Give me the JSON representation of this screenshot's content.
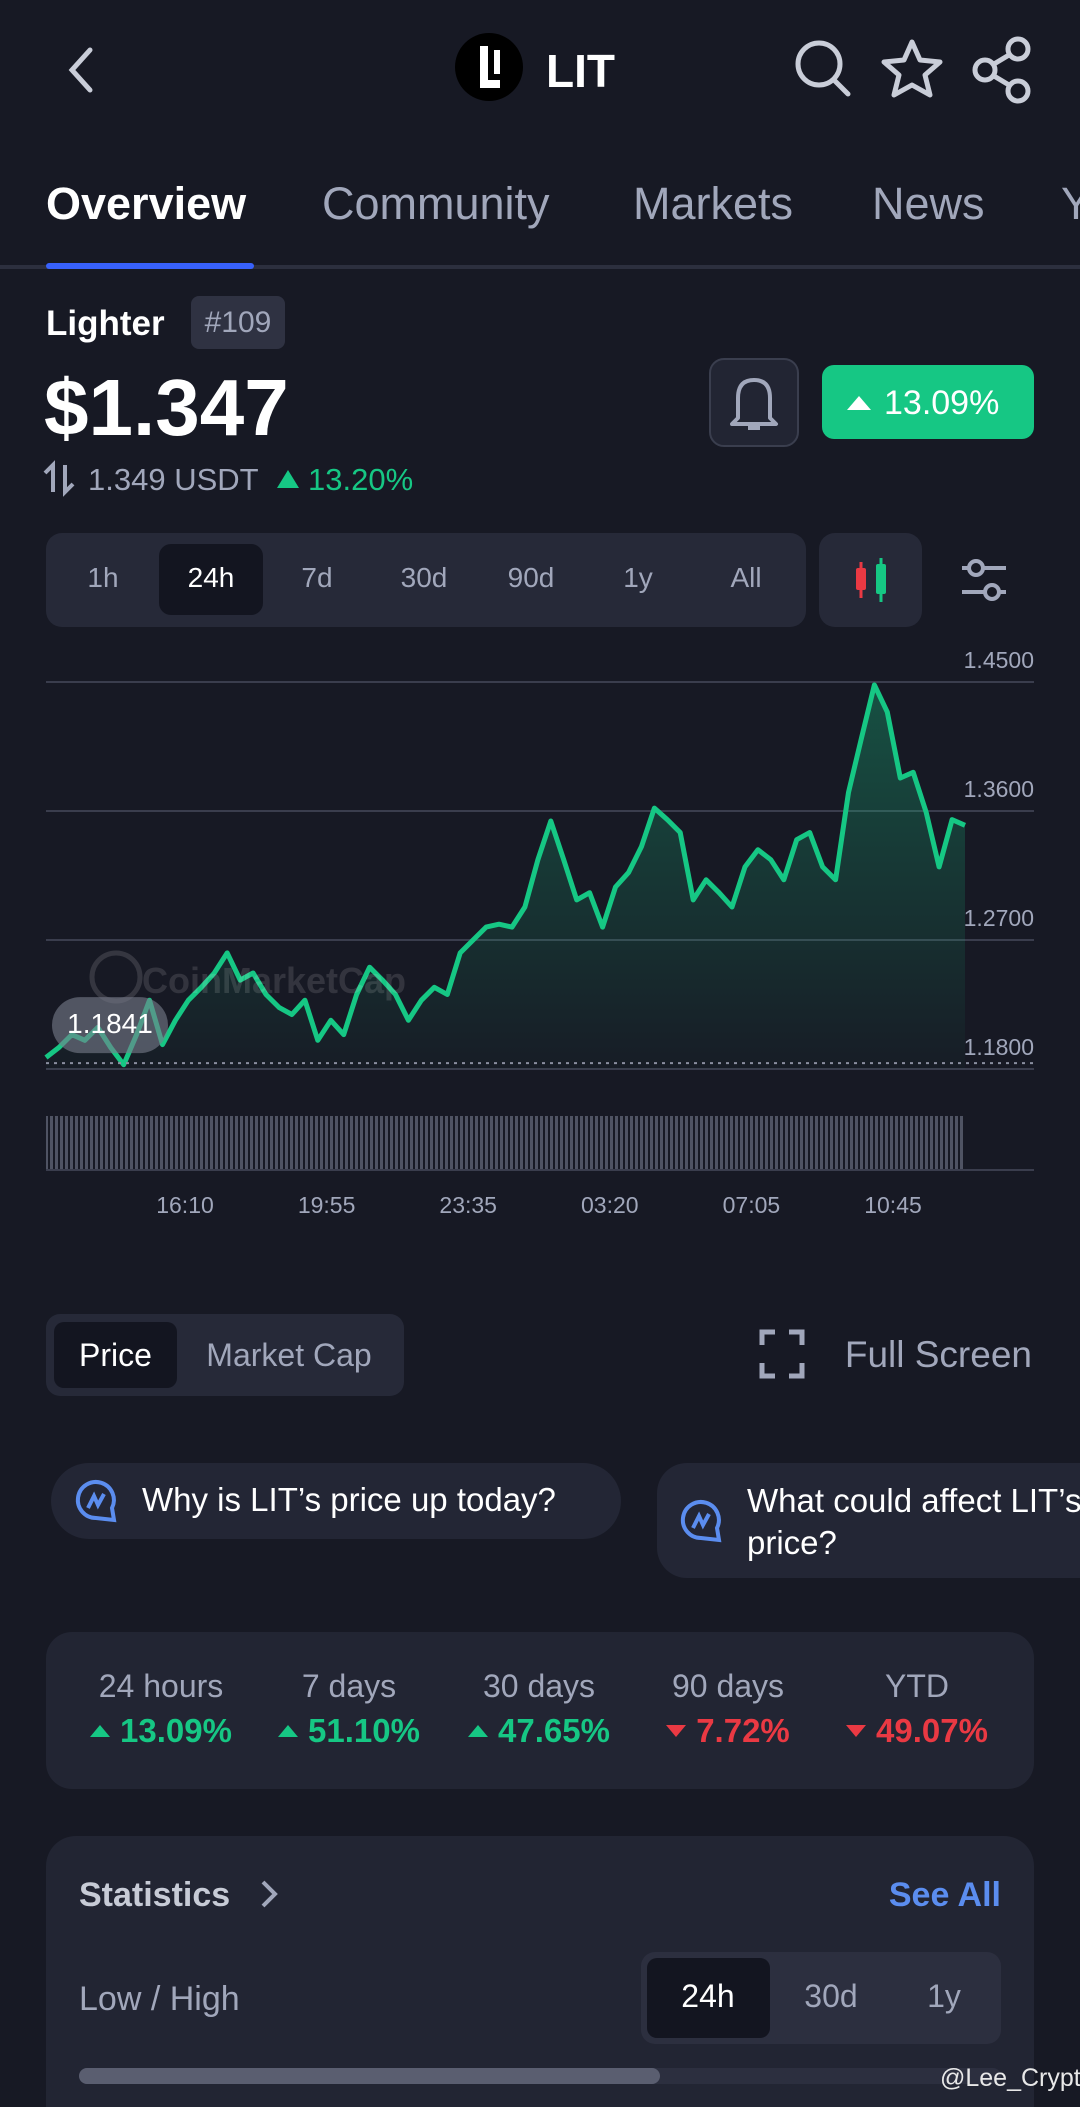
{
  "header": {
    "title": "LIT"
  },
  "tabs": [
    "Overview",
    "Community",
    "Markets",
    "News",
    "Y"
  ],
  "coin": {
    "name": "Lighter",
    "rank": "#109",
    "price": "$1.347",
    "change_badge": "13.09%",
    "usdt_price": "1.349 USDT",
    "usdt_change": "13.20%"
  },
  "time_ranges": [
    "1h",
    "24h",
    "7d",
    "30d",
    "90d",
    "1y",
    "All"
  ],
  "selected_time_range": 1,
  "chart_data": {
    "type": "line",
    "watermark": "CoinMarketCap",
    "color": "#16c784",
    "values": [
      1.188,
      1.195,
      1.204,
      1.2,
      1.209,
      1.195,
      1.183,
      1.204,
      1.228,
      1.197,
      1.214,
      1.228,
      1.237,
      1.247,
      1.261,
      1.242,
      1.247,
      1.232,
      1.223,
      1.218,
      1.228,
      1.2,
      1.214,
      1.204,
      1.232,
      1.251,
      1.242,
      1.232,
      1.214,
      1.228,
      1.237,
      1.232,
      1.261,
      1.27,
      1.279,
      1.281,
      1.279,
      1.293,
      1.326,
      1.353,
      1.326,
      1.298,
      1.303,
      1.279,
      1.307,
      1.317,
      1.335,
      1.362,
      1.354,
      1.345,
      1.298,
      1.312,
      1.303,
      1.293,
      1.321,
      1.333,
      1.326,
      1.312,
      1.34,
      1.345,
      1.321,
      1.312,
      1.373,
      1.411,
      1.448,
      1.429,
      1.383,
      1.387,
      1.359,
      1.321,
      1.354,
      1.35
    ],
    "ylim": [
      1.18,
      1.45
    ],
    "yticks": [
      {
        "value": 1.18,
        "label": "1.1800"
      },
      {
        "value": 1.27,
        "label": "1.2700"
      },
      {
        "value": 1.36,
        "label": "1.3600"
      },
      {
        "value": 1.45,
        "label": "1.4500"
      }
    ],
    "xticks": [
      "16:10",
      "19:55",
      "23:35",
      "03:20",
      "07:05",
      "10:45"
    ],
    "reference_value": 1.1841,
    "grid": true
  },
  "chart_toggle": [
    "Price",
    "Market Cap"
  ],
  "full_screen": "Full Screen",
  "questions": [
    "Why is LIT’s price up today?",
    "What could affect LIT’s price?"
  ],
  "performance": [
    {
      "label": "24 hours",
      "value": "13.09%",
      "direction": "up"
    },
    {
      "label": "7 days",
      "value": "51.10%",
      "direction": "up"
    },
    {
      "label": "30 days",
      "value": "47.65%",
      "direction": "up"
    },
    {
      "label": "90 days",
      "value": "7.72%",
      "direction": "down"
    },
    {
      "label": "YTD",
      "value": "49.07%",
      "direction": "down"
    }
  ],
  "statistics": {
    "title": "Statistics",
    "link": "See All",
    "row_label": "Low / High",
    "ranges": [
      "24h",
      "30d",
      "1y"
    ],
    "selected_range": 0
  },
  "watermark": "@Lee_Crypt"
}
